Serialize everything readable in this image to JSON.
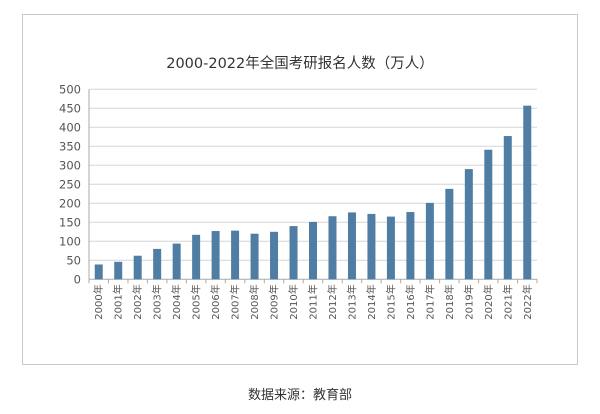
{
  "chart_data": {
    "type": "bar",
    "title": "2000-2022年全国考研报名人数（万人）",
    "xlabel": "",
    "ylabel": "",
    "ylim": [
      0,
      500
    ],
    "yticks": [
      0,
      50,
      100,
      150,
      200,
      250,
      300,
      350,
      400,
      450,
      500
    ],
    "grid": true,
    "categories": [
      "2000年",
      "2001年",
      "2002年",
      "2003年",
      "2004年",
      "2005年",
      "2006年",
      "2007年",
      "2008年",
      "2009年",
      "2010年",
      "2011年",
      "2012年",
      "2013年",
      "2014年",
      "2015年",
      "2016年",
      "2017年",
      "2018年",
      "2019年",
      "2020年",
      "2021年",
      "2022年"
    ],
    "values": [
      39,
      46,
      62,
      80,
      94,
      117,
      127,
      128,
      120,
      125,
      140,
      151,
      166,
      176,
      172,
      165,
      177,
      201,
      238,
      290,
      341,
      377,
      457
    ],
    "bar_color": "#4f7da3"
  },
  "source": "数据来源：教育部"
}
